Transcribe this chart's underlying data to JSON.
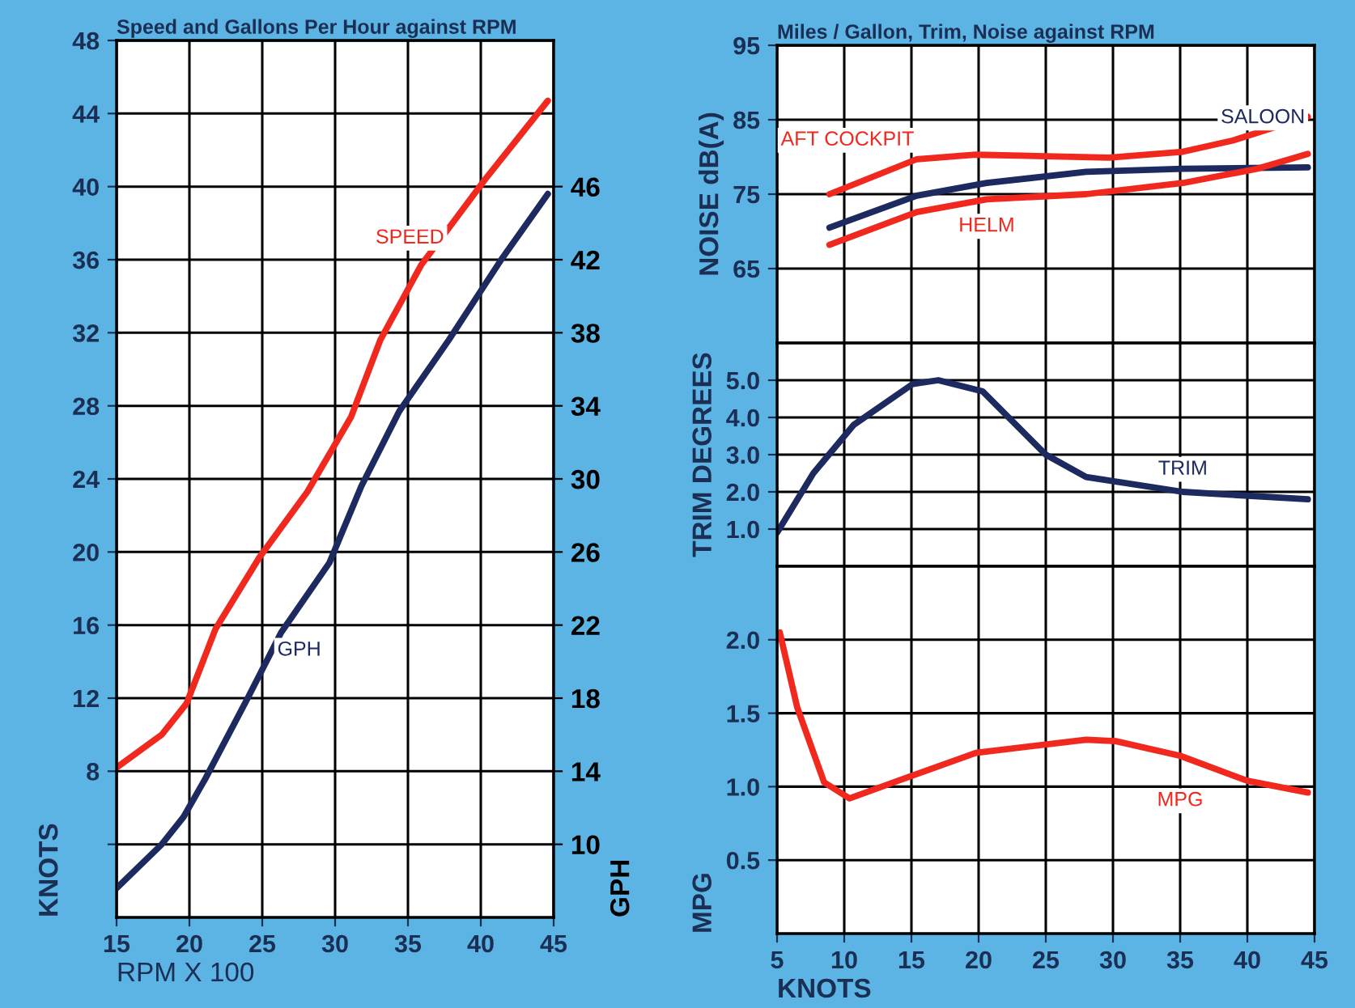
{
  "chart_data": [
    {
      "type": "line",
      "title": "Speed and Gallons Per Hour against RPM",
      "xlabel": "RPM X 100",
      "ylabel": "KNOTS",
      "y2label": "GPH",
      "xlim": [
        15,
        45
      ],
      "xticks": [
        15,
        20,
        25,
        30,
        35,
        40,
        45
      ],
      "ylim": [
        0,
        48
      ],
      "yticks": [
        {
          "value": 4,
          "label": null
        },
        8,
        12,
        16,
        20,
        24,
        28,
        32,
        36,
        40,
        44,
        48
      ],
      "y2lim": [
        6,
        54
      ],
      "y2ticks": [
        10,
        14,
        18,
        22,
        26,
        30,
        34,
        38,
        42,
        46
      ],
      "grid": true,
      "series": [
        {
          "name": "SPEED",
          "color": "#f0281e",
          "x": [
            15,
            18.1,
            19.8,
            21.8,
            24.8,
            28.1,
            31.1,
            33.1,
            35.9,
            40.3,
            44.6
          ],
          "values": [
            8.2,
            10,
            11.7,
            15.8,
            19.7,
            23.3,
            27.4,
            31.6,
            35.7,
            40.4,
            44.7
          ]
        },
        {
          "name": "GPH",
          "color": "#1c2a60",
          "axis": "y2",
          "x": [
            15,
            18.1,
            19.6,
            21.1,
            24,
            26.3,
            29.6,
            31.8,
            34.4,
            37.8,
            41.4,
            44.6
          ],
          "values": [
            7.6,
            10,
            11.5,
            13.6,
            18,
            21.6,
            25.4,
            29.6,
            33.7,
            37.6,
            42,
            45.6
          ]
        }
      ]
    },
    {
      "type": "line",
      "title": "Miles / Gallon, Trim, Noise against RPM",
      "ylabel": "NOISE dB(A)",
      "xlim": [
        5,
        45
      ],
      "xticks": [
        5,
        10,
        15,
        20,
        25,
        30,
        35,
        40,
        45
      ],
      "ylim": [
        55,
        95
      ],
      "yticks": [
        65,
        75,
        85,
        95
      ],
      "grid": true,
      "tick_labels": "y",
      "series": [
        {
          "name": "AFT COCKPIT",
          "color": "#f0281e",
          "x": [
            8.9,
            15.4,
            19.8,
            29.7,
            35.2,
            38.9,
            44.5
          ],
          "values": [
            75,
            79.7,
            80.3,
            79.9,
            80.7,
            82.2,
            85.4
          ]
        },
        {
          "name": "SALOON",
          "color": "#1c2a60",
          "x": [
            8.9,
            15.4,
            20.6,
            28,
            35.2,
            44.5
          ],
          "values": [
            70.5,
            74.8,
            76.5,
            78,
            78.4,
            78.6
          ]
        },
        {
          "name": "HELM",
          "color": "#f0281e",
          "x": [
            8.9,
            15.4,
            20.6,
            28,
            35.2,
            40.7,
            44.5
          ],
          "values": [
            68.2,
            72.6,
            74.3,
            75,
            76.5,
            78.4,
            80.4
          ]
        }
      ]
    },
    {
      "type": "line",
      "ylabel": "TRIM DEGREES",
      "xlim": [
        5,
        45
      ],
      "xticks": [
        5,
        10,
        15,
        20,
        25,
        30,
        35,
        40,
        45
      ],
      "ylim": [
        0,
        6
      ],
      "yticks": [
        {
          "value": 1,
          "label": "1.0"
        },
        {
          "value": 2,
          "label": "2.0"
        },
        {
          "value": 3,
          "label": "3.0"
        },
        {
          "value": 4,
          "label": "4.0"
        },
        {
          "value": 5,
          "label": "5.0"
        }
      ],
      "grid": true,
      "tick_labels": "y",
      "series": [
        {
          "name": "TRIM",
          "color": "#1c2a60",
          "x": [
            5,
            7.7,
            10.7,
            15.1,
            17,
            20.3,
            25,
            28,
            35.2,
            44.5
          ],
          "values": [
            0.9,
            2.5,
            3.8,
            4.9,
            5.0,
            4.7,
            3.0,
            2.4,
            2.0,
            1.8
          ]
        }
      ]
    },
    {
      "type": "line",
      "xlabel": "KNOTS",
      "ylabel": "MPG",
      "xlim": [
        5,
        45
      ],
      "xticks": [
        5,
        10,
        15,
        20,
        25,
        30,
        35,
        40,
        45
      ],
      "ylim": [
        0,
        2.5
      ],
      "yticks": [
        0.5,
        {
          "value": 1,
          "label": "1.0"
        },
        1.5,
        {
          "value": 2,
          "label": "2.0"
        }
      ],
      "grid": true,
      "series": [
        {
          "name": "MPG",
          "color": "#f0281e",
          "x": [
            5.2,
            6.5,
            8.5,
            10.4,
            14,
            19.8,
            28,
            30.2,
            35,
            40,
            44.5
          ],
          "values": [
            2.05,
            1.54,
            1.03,
            0.92,
            1.04,
            1.23,
            1.32,
            1.31,
            1.21,
            1.04,
            0.96
          ]
        }
      ]
    }
  ]
}
